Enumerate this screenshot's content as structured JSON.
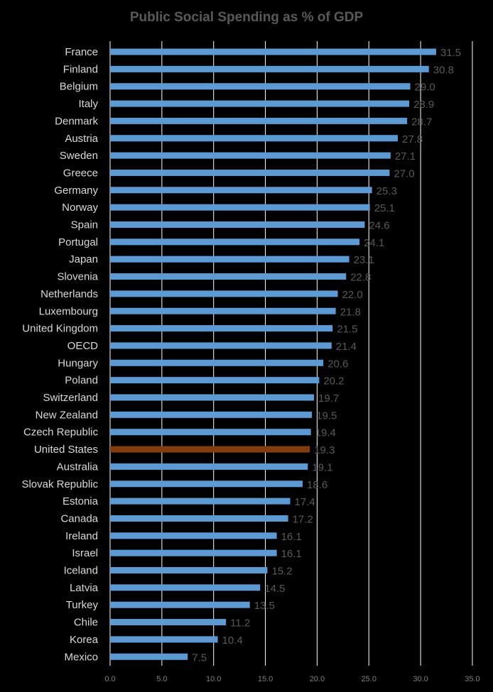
{
  "chart_data": {
    "type": "bar",
    "orientation": "horizontal",
    "title": "Public Social Spending as % of GDP",
    "categories": [
      "France",
      "Finland",
      "Belgium",
      "Italy",
      "Denmark",
      "Austria",
      "Sweden",
      "Greece",
      "Germany",
      "Norway",
      "Spain",
      "Portugal",
      "Japan",
      "Slovenia",
      "Netherlands",
      "Luxembourg",
      "United Kingdom",
      "OECD",
      "Hungary",
      "Poland",
      "Switzerland",
      "New Zealand",
      "Czech Republic",
      "United States",
      "Australia",
      "Slovak Republic",
      "Estonia",
      "Canada",
      "Ireland",
      "Israel",
      "Iceland",
      "Latvia",
      "Turkey",
      "Chile",
      "Korea",
      "Mexico"
    ],
    "values": [
      31.5,
      30.8,
      29.0,
      28.9,
      28.7,
      27.8,
      27.1,
      27.0,
      25.3,
      25.1,
      24.6,
      24.1,
      23.1,
      22.8,
      22.0,
      21.8,
      21.5,
      21.4,
      20.6,
      20.2,
      19.7,
      19.5,
      19.4,
      19.3,
      19.1,
      18.6,
      17.4,
      17.2,
      16.1,
      16.1,
      15.2,
      14.5,
      13.5,
      11.2,
      10.4,
      7.5
    ],
    "value_labels": [
      "31.5",
      "30.8",
      "29.0",
      "28.9",
      "28.7",
      "27.8",
      "27.1",
      "27.0",
      "25.3",
      "25.1",
      "24.6",
      "24.1",
      "23.1",
      "22.8",
      "22.0",
      "21.8",
      "21.5",
      "21.4",
      "20.6",
      "20.2",
      "19.7",
      "19.5",
      "19.4",
      "19.3",
      "19.1",
      "18.6",
      "17.4",
      "17.2",
      "16.1",
      "16.1",
      "15.2",
      "14.5",
      "13.5",
      "11.2",
      "10.4",
      "7.5"
    ],
    "highlight_category": "United States",
    "xlim": [
      0,
      35
    ],
    "xticks": [
      "0.0",
      "5.0",
      "10.0",
      "15.0",
      "20.0",
      "25.0",
      "30.0",
      "35.0"
    ],
    "xtick_values": [
      0,
      5,
      10,
      15,
      20,
      25,
      30,
      35
    ],
    "grid": true,
    "colors": {
      "bar": "#5b9bd5",
      "highlight": "#843c0c",
      "background": "#000000",
      "grid": "#ffffff"
    }
  }
}
